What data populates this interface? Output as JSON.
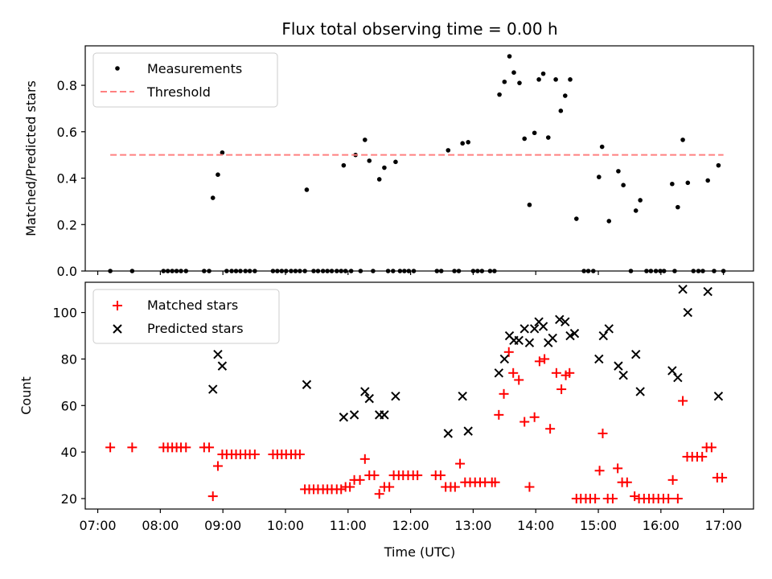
{
  "title": "Flux total observing time = 0.00 h",
  "colors": {
    "measurement": "#000000",
    "threshold": "#ff8080",
    "matched": "#ff0000",
    "predicted": "#000000"
  },
  "chart_data": [
    {
      "type": "scatter",
      "ylabel": "Matched/Predicted stars",
      "ylim": [
        0,
        0.97
      ],
      "yticks": [
        0.0,
        0.2,
        0.4,
        0.6,
        0.8
      ],
      "ytick_labels": [
        "0.0",
        "0.2",
        "0.4",
        "0.6",
        "0.8"
      ],
      "xlim": [
        6.8,
        17.48
      ],
      "grid": false,
      "legend": {
        "placement": "upper-left",
        "entries": [
          "Measurements",
          "Threshold"
        ]
      },
      "threshold": {
        "name": "Threshold",
        "value": 0.5,
        "x_range": [
          7.2,
          17.0
        ]
      },
      "series": [
        {
          "name": "Measurements",
          "points": [
            [
              7.2,
              0
            ],
            [
              7.55,
              0
            ],
            [
              8.05,
              0
            ],
            [
              8.12,
              0
            ],
            [
              8.19,
              0
            ],
            [
              8.26,
              0
            ],
            [
              8.33,
              0
            ],
            [
              8.41,
              0
            ],
            [
              8.7,
              0
            ],
            [
              8.78,
              0
            ],
            [
              8.84,
              0.315
            ],
            [
              8.92,
              0.415
            ],
            [
              8.99,
              0.51
            ],
            [
              9.06,
              0
            ],
            [
              9.14,
              0
            ],
            [
              9.21,
              0
            ],
            [
              9.28,
              0
            ],
            [
              9.36,
              0
            ],
            [
              9.43,
              0
            ],
            [
              9.51,
              0
            ],
            [
              9.8,
              0
            ],
            [
              9.87,
              0
            ],
            [
              9.94,
              0
            ],
            [
              10.01,
              0
            ],
            [
              10.09,
              0
            ],
            [
              10.16,
              0
            ],
            [
              10.23,
              0
            ],
            [
              10.31,
              0
            ],
            [
              10.34,
              0.35
            ],
            [
              10.45,
              0
            ],
            [
              10.52,
              0
            ],
            [
              10.6,
              0
            ],
            [
              10.67,
              0
            ],
            [
              10.74,
              0
            ],
            [
              10.82,
              0
            ],
            [
              10.89,
              0
            ],
            [
              10.96,
              0
            ],
            [
              10.93,
              0.455
            ],
            [
              11.05,
              0
            ],
            [
              11.12,
              0.5
            ],
            [
              11.2,
              0
            ],
            [
              11.27,
              0.565
            ],
            [
              11.34,
              0.475
            ],
            [
              11.4,
              0
            ],
            [
              11.5,
              0.395
            ],
            [
              11.58,
              0.445
            ],
            [
              11.64,
              0
            ],
            [
              11.72,
              0
            ],
            [
              11.76,
              0.47
            ],
            [
              11.83,
              0
            ],
            [
              11.9,
              0
            ],
            [
              11.97,
              0
            ],
            [
              12.05,
              0
            ],
            [
              12.42,
              0
            ],
            [
              12.49,
              0
            ],
            [
              12.6,
              0.52
            ],
            [
              12.7,
              0
            ],
            [
              12.77,
              0
            ],
            [
              12.83,
              0.55
            ],
            [
              12.92,
              0.555
            ],
            [
              13.0,
              0
            ],
            [
              13.07,
              0
            ],
            [
              13.14,
              0
            ],
            [
              13.27,
              0
            ],
            [
              13.34,
              0
            ],
            [
              13.42,
              0.76
            ],
            [
              13.5,
              0.815
            ],
            [
              13.58,
              0.925
            ],
            [
              13.65,
              0.855
            ],
            [
              13.74,
              0.81
            ],
            [
              13.82,
              0.57
            ],
            [
              13.9,
              0.285
            ],
            [
              13.98,
              0.595
            ],
            [
              14.05,
              0.825
            ],
            [
              14.12,
              0.85
            ],
            [
              14.2,
              0.575
            ],
            [
              14.32,
              0.825
            ],
            [
              14.4,
              0.69
            ],
            [
              14.47,
              0.755
            ],
            [
              14.55,
              0.825
            ],
            [
              14.65,
              0.225
            ],
            [
              14.77,
              0
            ],
            [
              14.84,
              0
            ],
            [
              14.92,
              0
            ],
            [
              15.01,
              0.405
            ],
            [
              15.06,
              0.535
            ],
            [
              15.17,
              0.215
            ],
            [
              15.32,
              0.43
            ],
            [
              15.4,
              0.37
            ],
            [
              15.52,
              0
            ],
            [
              15.6,
              0.26
            ],
            [
              15.67,
              0.305
            ],
            [
              15.77,
              0
            ],
            [
              15.84,
              0
            ],
            [
              15.92,
              0
            ],
            [
              15.99,
              0
            ],
            [
              16.05,
              0
            ],
            [
              16.18,
              0.375
            ],
            [
              16.22,
              0
            ],
            [
              16.27,
              0.275
            ],
            [
              16.35,
              0.565
            ],
            [
              16.43,
              0.38
            ],
            [
              16.52,
              0
            ],
            [
              16.6,
              0
            ],
            [
              16.67,
              0
            ],
            [
              16.75,
              0.39
            ],
            [
              16.85,
              0
            ],
            [
              16.92,
              0.455
            ],
            [
              17.0,
              0
            ]
          ]
        }
      ]
    },
    {
      "type": "scatter",
      "xlabel": "Time (UTC)",
      "ylabel": "Count",
      "ylim": [
        15.5,
        113
      ],
      "yticks": [
        20,
        40,
        60,
        80,
        100
      ],
      "xlim": [
        6.8,
        17.48
      ],
      "xticks": [
        7,
        8,
        9,
        10,
        11,
        12,
        13,
        14,
        15,
        16,
        17
      ],
      "xtick_labels": [
        "07:00",
        "08:00",
        "09:00",
        "10:00",
        "11:00",
        "12:00",
        "13:00",
        "14:00",
        "15:00",
        "16:00",
        "17:00"
      ],
      "grid": false,
      "legend": {
        "placement": "upper-left",
        "entries": [
          "Matched stars",
          "Predicted stars"
        ]
      },
      "series": [
        {
          "name": "Matched stars",
          "marker": "+",
          "points": [
            [
              7.2,
              42
            ],
            [
              7.55,
              42
            ],
            [
              8.05,
              42
            ],
            [
              8.12,
              42
            ],
            [
              8.19,
              42
            ],
            [
              8.26,
              42
            ],
            [
              8.33,
              42
            ],
            [
              8.41,
              42
            ],
            [
              8.7,
              42
            ],
            [
              8.78,
              42
            ],
            [
              8.84,
              21
            ],
            [
              8.92,
              34
            ],
            [
              8.99,
              39
            ],
            [
              9.06,
              39
            ],
            [
              9.14,
              39
            ],
            [
              9.21,
              39
            ],
            [
              9.28,
              39
            ],
            [
              9.36,
              39
            ],
            [
              9.43,
              39
            ],
            [
              9.51,
              39
            ],
            [
              9.8,
              39
            ],
            [
              9.87,
              39
            ],
            [
              9.94,
              39
            ],
            [
              10.01,
              39
            ],
            [
              10.09,
              39
            ],
            [
              10.16,
              39
            ],
            [
              10.23,
              39
            ],
            [
              10.31,
              24
            ],
            [
              10.38,
              24
            ],
            [
              10.45,
              24
            ],
            [
              10.52,
              24
            ],
            [
              10.6,
              24
            ],
            [
              10.67,
              24
            ],
            [
              10.74,
              24
            ],
            [
              10.82,
              24
            ],
            [
              10.89,
              24
            ],
            [
              10.96,
              25
            ],
            [
              11.03,
              25
            ],
            [
              11.1,
              28
            ],
            [
              11.19,
              28
            ],
            [
              11.27,
              37
            ],
            [
              11.34,
              30
            ],
            [
              11.42,
              30
            ],
            [
              11.5,
              22
            ],
            [
              11.58,
              25
            ],
            [
              11.66,
              25
            ],
            [
              11.73,
              30
            ],
            [
              11.81,
              30
            ],
            [
              11.88,
              30
            ],
            [
              11.96,
              30
            ],
            [
              12.04,
              30
            ],
            [
              12.11,
              30
            ],
            [
              12.4,
              30
            ],
            [
              12.48,
              30
            ],
            [
              12.56,
              25
            ],
            [
              12.64,
              25
            ],
            [
              12.71,
              25
            ],
            [
              12.79,
              35
            ],
            [
              12.87,
              27
            ],
            [
              12.95,
              27
            ],
            [
              13.03,
              27
            ],
            [
              13.11,
              27
            ],
            [
              13.19,
              27
            ],
            [
              13.3,
              27
            ],
            [
              13.35,
              27
            ],
            [
              13.41,
              56
            ],
            [
              13.49,
              65
            ],
            [
              13.57,
              83
            ],
            [
              13.64,
              74
            ],
            [
              13.73,
              71
            ],
            [
              13.82,
              53
            ],
            [
              13.9,
              25
            ],
            [
              13.98,
              55
            ],
            [
              14.06,
              79
            ],
            [
              14.14,
              80
            ],
            [
              14.23,
              50
            ],
            [
              14.33,
              74
            ],
            [
              14.41,
              67
            ],
            [
              14.48,
              73
            ],
            [
              14.54,
              74
            ],
            [
              14.65,
              20
            ],
            [
              14.72,
              20
            ],
            [
              14.8,
              20
            ],
            [
              14.87,
              20
            ],
            [
              14.95,
              20
            ],
            [
              15.02,
              32
            ],
            [
              15.07,
              48
            ],
            [
              15.15,
              20
            ],
            [
              15.23,
              20
            ],
            [
              15.31,
              33
            ],
            [
              15.38,
              27
            ],
            [
              15.46,
              27
            ],
            [
              15.58,
              21
            ],
            [
              15.65,
              20
            ],
            [
              15.73,
              20
            ],
            [
              15.81,
              20
            ],
            [
              15.88,
              20
            ],
            [
              15.96,
              20
            ],
            [
              16.04,
              20
            ],
            [
              16.12,
              20
            ],
            [
              16.19,
              28
            ],
            [
              16.27,
              20
            ],
            [
              16.35,
              62
            ],
            [
              16.42,
              38
            ],
            [
              16.5,
              38
            ],
            [
              16.58,
              38
            ],
            [
              16.66,
              38
            ],
            [
              16.73,
              42
            ],
            [
              16.81,
              42
            ],
            [
              16.9,
              29
            ],
            [
              16.98,
              29
            ]
          ]
        },
        {
          "name": "Predicted stars",
          "marker": "x",
          "points": [
            [
              8.84,
              67
            ],
            [
              8.92,
              82
            ],
            [
              8.99,
              77
            ],
            [
              10.34,
              69
            ],
            [
              10.93,
              55
            ],
            [
              11.1,
              56
            ],
            [
              11.27,
              66
            ],
            [
              11.34,
              63
            ],
            [
              11.5,
              56
            ],
            [
              11.58,
              56
            ],
            [
              11.76,
              64
            ],
            [
              12.6,
              48
            ],
            [
              12.83,
              64
            ],
            [
              12.92,
              49
            ],
            [
              13.41,
              74
            ],
            [
              13.5,
              80
            ],
            [
              13.58,
              90
            ],
            [
              13.65,
              88
            ],
            [
              13.73,
              88
            ],
            [
              13.82,
              93
            ],
            [
              13.9,
              87
            ],
            [
              13.98,
              93
            ],
            [
              14.05,
              96
            ],
            [
              14.12,
              94
            ],
            [
              14.2,
              87
            ],
            [
              14.27,
              89
            ],
            [
              14.38,
              97
            ],
            [
              14.47,
              96
            ],
            [
              14.55,
              90
            ],
            [
              14.62,
              91
            ],
            [
              15.01,
              80
            ],
            [
              15.08,
              90
            ],
            [
              15.17,
              93
            ],
            [
              15.32,
              77
            ],
            [
              15.4,
              73
            ],
            [
              15.6,
              82
            ],
            [
              15.67,
              66
            ],
            [
              16.18,
              75
            ],
            [
              16.27,
              72
            ],
            [
              16.35,
              110
            ],
            [
              16.43,
              100
            ],
            [
              16.75,
              109
            ],
            [
              16.92,
              64
            ]
          ]
        }
      ]
    }
  ]
}
